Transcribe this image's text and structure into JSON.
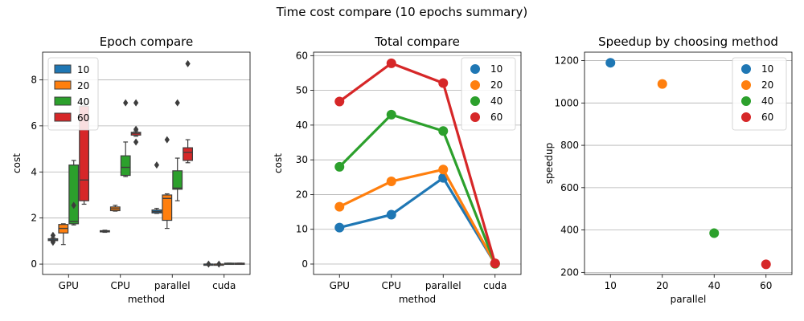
{
  "suptitle": "Time cost compare (10 epochs summary)",
  "colors": {
    "10": "#1f77b4",
    "20": "#ff7f0e",
    "40": "#2ca02c",
    "60": "#d62728"
  },
  "chart_data": [
    {
      "type": "box",
      "title": "Epoch compare",
      "xlabel": "method",
      "ylabel": "cost",
      "categories": [
        "GPU",
        "CPU",
        "parallel",
        "cuda"
      ],
      "ylim": [
        -0.45,
        9.2
      ],
      "yticks": [
        0,
        2,
        4,
        6,
        8
      ],
      "grid": "y",
      "legend_position": "upper-left",
      "legend": [
        "10",
        "20",
        "40",
        "60"
      ],
      "series": [
        {
          "name": "10",
          "boxes": [
            {
              "q1": 1.02,
              "med": 1.05,
              "q3": 1.1,
              "wlo": 1.0,
              "whi": 1.15,
              "fliers": [
                0.95,
                1.25
              ]
            },
            {
              "q1": 1.4,
              "med": 1.42,
              "q3": 1.45,
              "wlo": 1.38,
              "whi": 1.47,
              "fliers": []
            },
            {
              "q1": 2.22,
              "med": 2.28,
              "q3": 2.35,
              "wlo": 2.2,
              "whi": 2.42,
              "fliers": [
                4.3
              ]
            },
            {
              "q1": 0.0,
              "med": 0.0,
              "q3": 0.0,
              "wlo": 0.0,
              "whi": 0.0,
              "fliers": [
                0.0
              ]
            }
          ]
        },
        {
          "name": "20",
          "boxes": [
            {
              "q1": 1.35,
              "med": 1.55,
              "q3": 1.72,
              "wlo": 0.85,
              "whi": 1.75,
              "fliers": []
            },
            {
              "q1": 2.32,
              "med": 2.4,
              "q3": 2.48,
              "wlo": 2.3,
              "whi": 2.55,
              "fliers": []
            },
            {
              "q1": 1.9,
              "med": 2.85,
              "q3": 3.0,
              "wlo": 1.55,
              "whi": 3.05,
              "fliers": [
                5.4
              ]
            },
            {
              "q1": 0.0,
              "med": 0.0,
              "q3": 0.0,
              "wlo": 0.0,
              "whi": 0.0,
              "fliers": [
                0.0
              ]
            }
          ]
        },
        {
          "name": "40",
          "boxes": [
            {
              "q1": 1.75,
              "med": 1.85,
              "q3": 4.3,
              "wlo": 1.7,
              "whi": 4.5,
              "fliers": [
                2.55
              ]
            },
            {
              "q1": 3.85,
              "med": 4.2,
              "q3": 4.7,
              "wlo": 3.8,
              "whi": 5.3,
              "fliers": [
                7.0
              ]
            },
            {
              "q1": 3.25,
              "med": 3.3,
              "q3": 4.05,
              "wlo": 2.75,
              "whi": 4.6,
              "fliers": [
                7.0
              ]
            },
            {
              "q1": 0.02,
              "med": 0.03,
              "q3": 0.04,
              "wlo": 0.02,
              "whi": 0.04,
              "fliers": []
            }
          ]
        },
        {
          "name": "60",
          "boxes": [
            {
              "q1": 2.75,
              "med": 3.65,
              "q3": 6.85,
              "wlo": 2.6,
              "whi": 6.9,
              "fliers": []
            },
            {
              "q1": 5.6,
              "med": 5.68,
              "q3": 5.72,
              "wlo": 5.55,
              "whi": 5.78,
              "fliers": [
                5.3,
                5.85,
                7.0
              ]
            },
            {
              "q1": 4.5,
              "med": 4.85,
              "q3": 5.05,
              "wlo": 4.4,
              "whi": 5.4,
              "fliers": [
                8.7
              ]
            },
            {
              "q1": 0.02,
              "med": 0.03,
              "q3": 0.04,
              "wlo": 0.02,
              "whi": 0.04,
              "fliers": []
            }
          ]
        }
      ]
    },
    {
      "type": "line",
      "title": "Total compare",
      "xlabel": "method",
      "ylabel": "cost",
      "categories": [
        "GPU",
        "CPU",
        "parallel",
        "cuda"
      ],
      "ylim": [
        -3,
        61
      ],
      "yticks": [
        0,
        10,
        20,
        30,
        40,
        50,
        60
      ],
      "grid": "y",
      "legend_position": "upper-right",
      "series": [
        {
          "name": "10",
          "values": [
            10.5,
            14.2,
            24.8,
            0.1
          ]
        },
        {
          "name": "20",
          "values": [
            16.5,
            23.8,
            27.2,
            0.1
          ]
        },
        {
          "name": "40",
          "values": [
            28.0,
            43.0,
            38.3,
            0.1
          ]
        },
        {
          "name": "60",
          "values": [
            46.8,
            57.8,
            52.1,
            0.2
          ]
        }
      ]
    },
    {
      "type": "scatter",
      "title": "Speedup by choosing method",
      "xlabel": "parallel",
      "ylabel": "speedup",
      "categories": [
        "10",
        "20",
        "40",
        "60"
      ],
      "ylim": [
        190,
        1240
      ],
      "yticks": [
        200,
        400,
        600,
        800,
        1000,
        1200
      ],
      "grid": "y",
      "legend_position": "upper-right",
      "series": [
        {
          "name": "10",
          "values": [
            1190,
            null,
            null,
            null
          ]
        },
        {
          "name": "20",
          "values": [
            null,
            1090,
            null,
            null
          ]
        },
        {
          "name": "40",
          "values": [
            null,
            null,
            385,
            null
          ]
        },
        {
          "name": "60",
          "values": [
            null,
            null,
            null,
            238
          ]
        }
      ]
    }
  ]
}
